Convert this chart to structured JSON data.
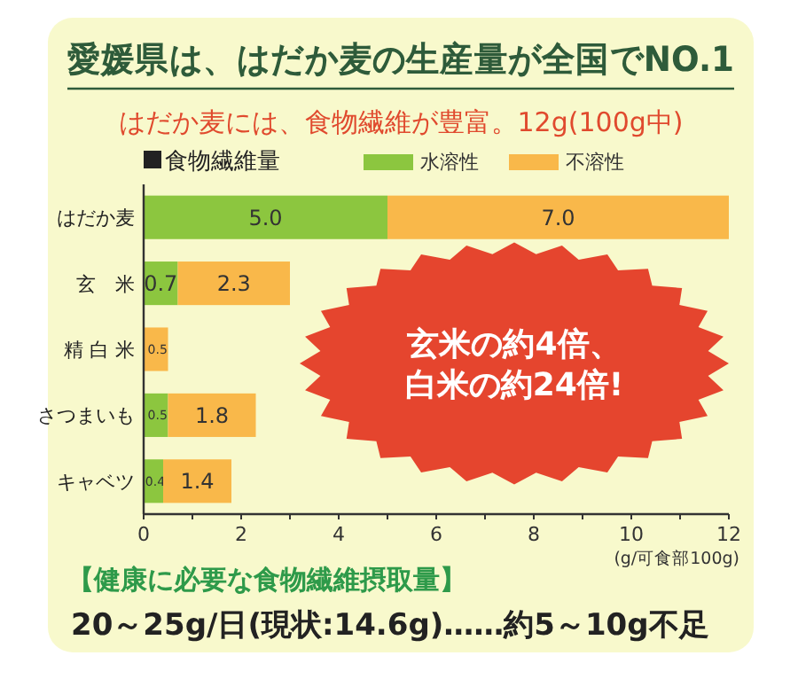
{
  "chart_data": {
    "type": "bar",
    "orientation": "horizontal",
    "stacked": true,
    "title": "愛媛県は、はだか麦の生産量が全国でNO.1",
    "subtitle": "はだか麦には、食物繊維が豊富。12g(100g中)",
    "legend_title": "食物繊維量",
    "xlabel": "(g/可食部100g)",
    "categories": [
      "はだか麦",
      "玄　米",
      "精 白 米",
      "さつまいも",
      "キャベツ"
    ],
    "series": [
      {
        "name": "水溶性",
        "color": "#8cc63f",
        "values": [
          5.0,
          0.7,
          null,
          0.5,
          0.4
        ],
        "value_labels": [
          "5.0",
          "0.7",
          null,
          "0.5",
          "0.4"
        ]
      },
      {
        "name": "不溶性",
        "color": "#f9b84a",
        "values": [
          7.0,
          2.3,
          0.5,
          1.8,
          1.4
        ],
        "value_labels": [
          "7.0",
          "2.3",
          "0.5",
          "1.8",
          "1.4"
        ]
      }
    ],
    "xlim": [
      0,
      12
    ],
    "xticks": [
      0,
      {
        "value": 1,
        "label": null
      },
      2,
      {
        "value": 3,
        "label": null
      },
      4,
      {
        "value": 5,
        "label": null
      },
      6,
      {
        "value": 7,
        "label": null
      },
      8,
      {
        "value": 9,
        "label": null
      },
      10,
      {
        "value": 11,
        "label": null
      },
      12
    ],
    "legend": "top",
    "annotations": [
      "玄米の約4倍、",
      "白米の約24倍!",
      "【健康に必要な食物繊維摂取量】",
      "20～25g/日(現状:14.6g)……約5～10g不足"
    ]
  }
}
